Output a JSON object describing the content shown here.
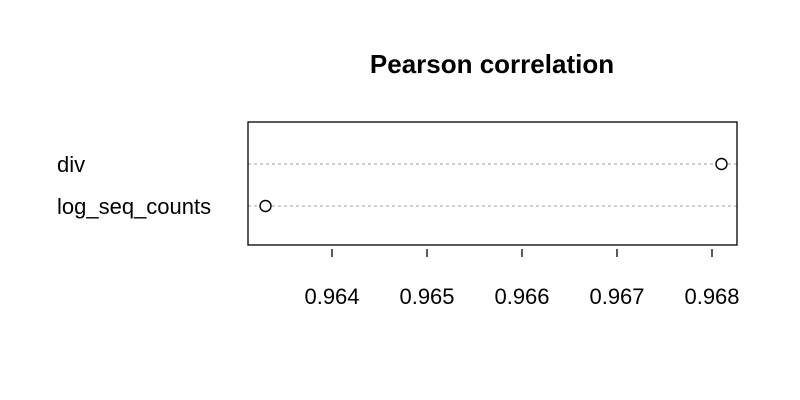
{
  "chart_data": {
    "type": "scatter",
    "subtype": "dotchart",
    "title": "Pearson correlation",
    "xlabel": "",
    "ylabel": "",
    "categories": [
      "div",
      "log_seq_counts"
    ],
    "values": [
      0.9681,
      0.9633
    ],
    "xlim": [
      0.9632,
      0.9683
    ],
    "xticks": [
      0.964,
      0.965,
      0.966,
      0.967,
      0.968
    ],
    "xtick_labels": [
      "0.964",
      "0.965",
      "0.966",
      "0.967",
      "0.968"
    ],
    "grid": "dotted horizontal guide lines",
    "legend": "none",
    "marker": "open circle"
  }
}
